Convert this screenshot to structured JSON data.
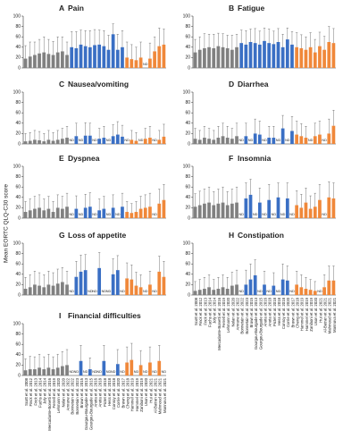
{
  "y_axis_title": "Mean EORTC QLQ-C30 score",
  "nd_label": "ND",
  "chart_data": [
    {
      "type": "bar",
      "panel": "A",
      "title": "Pain",
      "ylim": [
        0,
        100
      ],
      "yticks": [
        0,
        20,
        40,
        60,
        80,
        100
      ],
      "colors": [
        "#808080",
        "#808080",
        "#808080",
        "#808080",
        "#808080",
        "#808080",
        "#808080",
        "#808080",
        "#808080",
        "#808080",
        "#3a6fc4",
        "#3a6fc4",
        "#3a6fc4",
        "#3a6fc4",
        "#3a6fc4",
        "#3a6fc4",
        "#3a6fc4",
        "#3a6fc4",
        "#3a6fc4",
        "#3a6fc4",
        "#3a6fc4",
        "#3a6fc4",
        "#f0883a",
        "#f0883a",
        "#f0883a",
        "#f0883a",
        "#f0883a",
        "#f0883a",
        "#f0883a",
        "#f0883a",
        "#f0883a"
      ],
      "values": [
        18,
        22,
        25,
        28,
        30,
        27,
        25,
        30,
        32,
        25,
        40,
        38,
        45,
        42,
        40,
        44,
        45,
        42,
        35,
        65,
        35,
        40,
        20,
        17,
        15,
        20,
        null,
        18,
        32,
        42,
        45
      ],
      "errors": [
        25,
        28,
        25,
        27,
        30,
        28,
        26,
        30,
        28,
        25,
        30,
        32,
        28,
        30,
        32,
        30,
        28,
        30,
        28,
        20,
        30,
        32,
        30,
        28,
        25,
        30,
        null,
        30,
        28,
        35,
        30
      ]
    },
    {
      "type": "bar",
      "panel": "B",
      "title": "Fatigue",
      "ylim": [
        0,
        100
      ],
      "yticks": [
        0,
        20,
        40,
        60,
        80,
        100
      ],
      "colors": [
        "#808080",
        "#808080",
        "#808080",
        "#808080",
        "#808080",
        "#808080",
        "#808080",
        "#808080",
        "#808080",
        "#808080",
        "#3a6fc4",
        "#3a6fc4",
        "#3a6fc4",
        "#3a6fc4",
        "#3a6fc4",
        "#3a6fc4",
        "#3a6fc4",
        "#3a6fc4",
        "#3a6fc4",
        "#3a6fc4",
        "#3a6fc4",
        "#3a6fc4",
        "#f0883a",
        "#f0883a",
        "#f0883a",
        "#f0883a",
        "#f0883a",
        "#f0883a",
        "#f0883a",
        "#f0883a",
        "#f0883a"
      ],
      "values": [
        30,
        35,
        38,
        40,
        38,
        42,
        40,
        38,
        35,
        40,
        48,
        45,
        50,
        48,
        45,
        52,
        48,
        46,
        50,
        40,
        55,
        45,
        40,
        38,
        35,
        40,
        30,
        42,
        35,
        50,
        48
      ],
      "errors": [
        25,
        25,
        28,
        25,
        27,
        25,
        26,
        25,
        28,
        25,
        25,
        27,
        25,
        28,
        26,
        25,
        27,
        25,
        26,
        25,
        22,
        25,
        28,
        26,
        25,
        28,
        25,
        27,
        26,
        30,
        28
      ]
    },
    {
      "type": "bar",
      "panel": "C",
      "title": "Nausea/vomiting",
      "ylim": [
        0,
        100
      ],
      "yticks": [
        0,
        20,
        40,
        60,
        80,
        100
      ],
      "colors": [
        "#808080",
        "#808080",
        "#808080",
        "#808080",
        "#808080",
        "#808080",
        "#808080",
        "#808080",
        "#808080",
        "#808080",
        "#3a6fc4",
        "#3a6fc4",
        "#3a6fc4",
        "#3a6fc4",
        "#3a6fc4",
        "#3a6fc4",
        "#3a6fc4",
        "#3a6fc4",
        "#3a6fc4",
        "#3a6fc4",
        "#3a6fc4",
        "#3a6fc4",
        "#f0883a",
        "#f0883a",
        "#f0883a",
        "#f0883a",
        "#f0883a",
        "#f0883a",
        "#f0883a",
        "#f0883a",
        "#f0883a"
      ],
      "values": [
        5,
        6,
        8,
        7,
        5,
        8,
        6,
        8,
        10,
        12,
        null,
        15,
        null,
        16,
        16,
        null,
        10,
        12,
        null,
        15,
        18,
        14,
        null,
        8,
        6,
        null,
        10,
        12,
        null,
        8,
        14
      ],
      "errors": [
        15,
        16,
        18,
        17,
        15,
        18,
        16,
        18,
        20,
        22,
        null,
        25,
        null,
        25,
        24,
        null,
        20,
        22,
        null,
        22,
        25,
        22,
        null,
        18,
        16,
        null,
        20,
        22,
        null,
        18,
        24
      ]
    },
    {
      "type": "bar",
      "panel": "D",
      "title": "Diarrhea",
      "ylim": [
        0,
        100
      ],
      "yticks": [
        0,
        20,
        40,
        60,
        80,
        100
      ],
      "colors": [
        "#808080",
        "#808080",
        "#808080",
        "#808080",
        "#808080",
        "#808080",
        "#808080",
        "#808080",
        "#808080",
        "#808080",
        "#3a6fc4",
        "#3a6fc4",
        "#3a6fc4",
        "#3a6fc4",
        "#3a6fc4",
        "#3a6fc4",
        "#3a6fc4",
        "#3a6fc4",
        "#3a6fc4",
        "#3a6fc4",
        "#3a6fc4",
        "#3a6fc4",
        "#f0883a",
        "#f0883a",
        "#f0883a",
        "#f0883a",
        "#f0883a",
        "#f0883a",
        "#f0883a",
        "#f0883a",
        "#f0883a"
      ],
      "values": [
        10,
        8,
        12,
        10,
        8,
        12,
        15,
        12,
        10,
        15,
        null,
        15,
        null,
        20,
        18,
        null,
        12,
        12,
        null,
        30,
        null,
        25,
        18,
        15,
        12,
        null,
        15,
        18,
        null,
        20,
        35
      ],
      "errors": [
        20,
        18,
        22,
        20,
        18,
        22,
        25,
        22,
        20,
        25,
        null,
        25,
        null,
        28,
        26,
        null,
        22,
        22,
        null,
        25,
        null,
        28,
        26,
        24,
        22,
        null,
        25,
        26,
        null,
        28,
        30
      ]
    },
    {
      "type": "bar",
      "panel": "E",
      "title": "Dyspnea",
      "ylim": [
        0,
        100
      ],
      "yticks": [
        0,
        20,
        40,
        60,
        80,
        100
      ],
      "colors": [
        "#808080",
        "#808080",
        "#808080",
        "#808080",
        "#808080",
        "#808080",
        "#808080",
        "#808080",
        "#808080",
        "#808080",
        "#3a6fc4",
        "#3a6fc4",
        "#3a6fc4",
        "#3a6fc4",
        "#3a6fc4",
        "#3a6fc4",
        "#3a6fc4",
        "#3a6fc4",
        "#3a6fc4",
        "#3a6fc4",
        "#3a6fc4",
        "#3a6fc4",
        "#f0883a",
        "#f0883a",
        "#f0883a",
        "#f0883a",
        "#f0883a",
        "#f0883a",
        "#f0883a",
        "#f0883a",
        "#f0883a"
      ],
      "values": [
        12,
        15,
        18,
        20,
        15,
        18,
        12,
        20,
        18,
        22,
        null,
        18,
        null,
        20,
        22,
        null,
        15,
        18,
        null,
        20,
        null,
        22,
        12,
        10,
        12,
        18,
        20,
        22,
        null,
        28,
        35
      ],
      "errors": [
        20,
        22,
        24,
        25,
        22,
        24,
        20,
        25,
        24,
        26,
        null,
        25,
        null,
        26,
        27,
        null,
        22,
        24,
        null,
        25,
        null,
        26,
        20,
        18,
        20,
        24,
        25,
        26,
        null,
        28,
        30
      ]
    },
    {
      "type": "bar",
      "panel": "F",
      "title": "Insomnia",
      "ylim": [
        0,
        100
      ],
      "yticks": [
        0,
        20,
        40,
        60,
        80,
        100
      ],
      "colors": [
        "#808080",
        "#808080",
        "#808080",
        "#808080",
        "#808080",
        "#808080",
        "#808080",
        "#808080",
        "#808080",
        "#808080",
        "#3a6fc4",
        "#3a6fc4",
        "#3a6fc4",
        "#3a6fc4",
        "#3a6fc4",
        "#3a6fc4",
        "#3a6fc4",
        "#3a6fc4",
        "#3a6fc4",
        "#3a6fc4",
        "#3a6fc4",
        "#3a6fc4",
        "#f0883a",
        "#f0883a",
        "#f0883a",
        "#f0883a",
        "#f0883a",
        "#f0883a",
        "#f0883a",
        "#f0883a",
        "#f0883a"
      ],
      "values": [
        22,
        25,
        28,
        30,
        25,
        28,
        30,
        25,
        28,
        30,
        null,
        38,
        45,
        null,
        30,
        null,
        35,
        null,
        40,
        null,
        38,
        null,
        25,
        20,
        30,
        18,
        22,
        35,
        null,
        40,
        38
      ],
      "errors": [
        25,
        27,
        28,
        30,
        26,
        28,
        30,
        26,
        28,
        30,
        null,
        30,
        30,
        null,
        28,
        null,
        30,
        null,
        28,
        null,
        30,
        null,
        28,
        26,
        28,
        25,
        26,
        30,
        null,
        30,
        30
      ]
    },
    {
      "type": "bar",
      "panel": "G",
      "title": "Loss of appetite",
      "ylim": [
        0,
        100
      ],
      "yticks": [
        0,
        20,
        40,
        60,
        80,
        100
      ],
      "colors": [
        "#808080",
        "#808080",
        "#808080",
        "#808080",
        "#808080",
        "#808080",
        "#808080",
        "#808080",
        "#808080",
        "#808080",
        "#3a6fc4",
        "#3a6fc4",
        "#3a6fc4",
        "#3a6fc4",
        "#3a6fc4",
        "#3a6fc4",
        "#3a6fc4",
        "#3a6fc4",
        "#3a6fc4",
        "#3a6fc4",
        "#3a6fc4",
        "#3a6fc4",
        "#f0883a",
        "#f0883a",
        "#f0883a",
        "#f0883a",
        "#f0883a",
        "#f0883a",
        "#f0883a",
        "#f0883a",
        "#f0883a"
      ],
      "values": [
        12,
        15,
        20,
        18,
        15,
        20,
        18,
        22,
        25,
        20,
        null,
        35,
        45,
        48,
        null,
        null,
        52,
        null,
        null,
        40,
        48,
        null,
        32,
        30,
        18,
        15,
        null,
        20,
        null,
        45,
        35
      ],
      "errors": [
        22,
        24,
        26,
        25,
        24,
        26,
        25,
        28,
        28,
        26,
        null,
        30,
        32,
        30,
        null,
        null,
        30,
        null,
        null,
        30,
        28,
        null,
        30,
        28,
        26,
        24,
        null,
        26,
        null,
        30,
        30
      ]
    },
    {
      "type": "bar",
      "panel": "H",
      "title": "Constipation",
      "ylim": [
        0,
        100
      ],
      "yticks": [
        0,
        20,
        40,
        60,
        80,
        100
      ],
      "colors": [
        "#808080",
        "#808080",
        "#808080",
        "#808080",
        "#808080",
        "#808080",
        "#808080",
        "#808080",
        "#808080",
        "#808080",
        "#3a6fc4",
        "#3a6fc4",
        "#3a6fc4",
        "#3a6fc4",
        "#3a6fc4",
        "#3a6fc4",
        "#3a6fc4",
        "#3a6fc4",
        "#3a6fc4",
        "#3a6fc4",
        "#3a6fc4",
        "#3a6fc4",
        "#f0883a",
        "#f0883a",
        "#f0883a",
        "#f0883a",
        "#f0883a",
        "#f0883a",
        "#f0883a",
        "#f0883a",
        "#f0883a"
      ],
      "categories": [
        "Scott et al. 2008",
        "Finck et al. 2012",
        "Frick et al. 2013",
        "Fuchs et al. 2014",
        "Joly et al. 2014",
        "Mercadante-Bonetti et al. 2016",
        "Ferrell et al. 2019",
        "Lehmann et al. 2020",
        "Nolan et al. 2020",
        "Amrane et al. 2022",
        "Bonnetain et al. 2022",
        "Bonnetain et al. 2023",
        "Brown et al. 2015",
        "Gourgou-Bourgade et al. 2013",
        "Gourgou-Bourgade et al. 2015",
        "Anota et al. 2016",
        "Anota et al. 2018",
        "Pictet et al. 2018",
        "Hess et al. 2018",
        "Conroy et al. 2018",
        "Corrie et al. 2020",
        "Brown et al. 2017",
        "Cheng et al. 2018",
        "Hammel et al. 2019",
        "Hammel et al. 2019",
        "Zaniboni et al. 2019",
        "Uson et al. 2020",
        "Hui et al. 2021",
        "Al-Batran et al. 2021",
        "Mahmoud et al. 2021",
        "Mannova et al. 2021"
      ],
      "values": [
        8,
        10,
        12,
        15,
        10,
        12,
        15,
        12,
        18,
        20,
        null,
        20,
        30,
        38,
        null,
        20,
        null,
        18,
        null,
        30,
        28,
        null,
        20,
        15,
        12,
        10,
        8,
        null,
        15,
        28,
        28
      ],
      "errors": [
        18,
        20,
        22,
        24,
        20,
        22,
        24,
        22,
        26,
        28,
        null,
        28,
        30,
        30,
        null,
        26,
        null,
        25,
        null,
        30,
        28,
        null,
        26,
        24,
        22,
        20,
        18,
        null,
        24,
        28,
        28
      ]
    },
    {
      "type": "bar",
      "panel": "I",
      "title": "Financial difficulties",
      "ylim": [
        0,
        100
      ],
      "yticks": [
        0,
        20,
        40,
        60,
        80,
        100
      ],
      "colors": [
        "#808080",
        "#808080",
        "#808080",
        "#808080",
        "#808080",
        "#808080",
        "#808080",
        "#808080",
        "#808080",
        "#808080",
        "#3a6fc4",
        "#3a6fc4",
        "#3a6fc4",
        "#3a6fc4",
        "#3a6fc4",
        "#3a6fc4",
        "#3a6fc4",
        "#3a6fc4",
        "#3a6fc4",
        "#3a6fc4",
        "#3a6fc4",
        "#3a6fc4",
        "#f0883a",
        "#f0883a",
        "#f0883a",
        "#f0883a",
        "#f0883a",
        "#f0883a",
        "#f0883a",
        "#f0883a",
        "#f0883a"
      ],
      "categories": [
        "Scott et al. 2008",
        "Finck et al. 2012",
        "Frick et al. 2013",
        "Fuchs et al. 2014",
        "Joly et al. 2014",
        "Mercadante-Bonetti et al. 2016",
        "Ferrell et al. 2019",
        "Lehmann et al. 2020",
        "Nolan et al. 2020",
        "Amrane et al. 2022",
        "Bonnetain et al. 2022",
        "Bonnetain et al. 2023",
        "Brown et al. 2015",
        "Gourgou-Bourgade et al. 2013",
        "Gourgou-Bourgade et al. 2015",
        "Anota et al. 2016",
        "Anota et al. 2018",
        "Pictet et al. 2018",
        "Hess et al. 2018",
        "Conroy et al. 2018",
        "Corrie et al. 2020",
        "Brown et al. 2017",
        "Cheng et al. 2018",
        "Hammel et al. 2019",
        "Hammel et al. 2019",
        "Zaniboni et al. 2019",
        "Uson et al. 2020",
        "Hui et al. 2021",
        "Al-Batran et al. 2021",
        "Mahmoud et al. 2021",
        "Mannova et al. 2021"
      ],
      "values": [
        10,
        12,
        12,
        15,
        12,
        15,
        12,
        15,
        18,
        20,
        null,
        null,
        28,
        null,
        12,
        null,
        null,
        28,
        null,
        null,
        22,
        null,
        25,
        30,
        null,
        20,
        null,
        25,
        null,
        28,
        null
      ],
      "errors": [
        22,
        25,
        24,
        26,
        24,
        26,
        24,
        26,
        28,
        30,
        null,
        null,
        30,
        null,
        22,
        null,
        null,
        30,
        null,
        null,
        28,
        null,
        30,
        32,
        null,
        28,
        null,
        30,
        null,
        30,
        null
      ]
    }
  ]
}
